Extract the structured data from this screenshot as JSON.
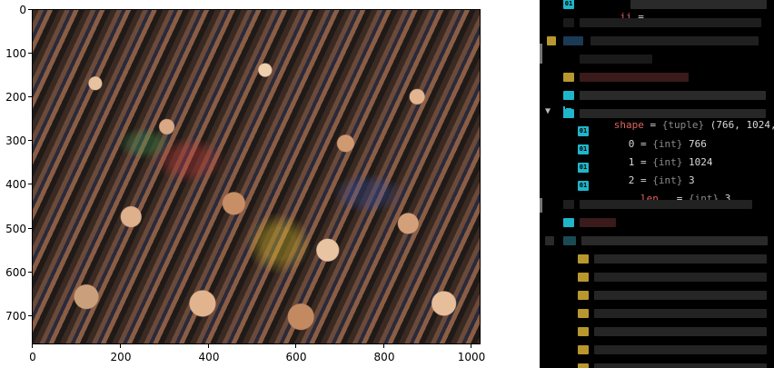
{
  "figure": {
    "image_alt": "crowd of people",
    "x_ticks": [
      "0",
      "200",
      "400",
      "600",
      "800",
      "1000"
    ],
    "y_ticks": [
      "0",
      "100",
      "200",
      "300",
      "400",
      "500",
      "600",
      "700"
    ]
  },
  "debugger": {
    "top_row": {
      "name": "_ii",
      "sep": " ="
    },
    "shape_row": {
      "name": "shape",
      "eq": " = ",
      "type": "{tuple}",
      "value": " (766, 1024, 3)"
    },
    "children": [
      {
        "name": "0",
        "eq": " = ",
        "type": "{int}",
        "value": " 766"
      },
      {
        "name": "1",
        "eq": " = ",
        "type": "{int}",
        "value": " 1024"
      },
      {
        "name": "2",
        "eq": " = ",
        "type": "{int}",
        "value": " 3"
      },
      {
        "name": "__len__",
        "eq": " = ",
        "type": "{int}",
        "value": " 3"
      }
    ],
    "badge_label": "01",
    "colors": {
      "accent": "#1fb6c9",
      "name": "#e0645f",
      "gold": "#b8972e"
    }
  }
}
